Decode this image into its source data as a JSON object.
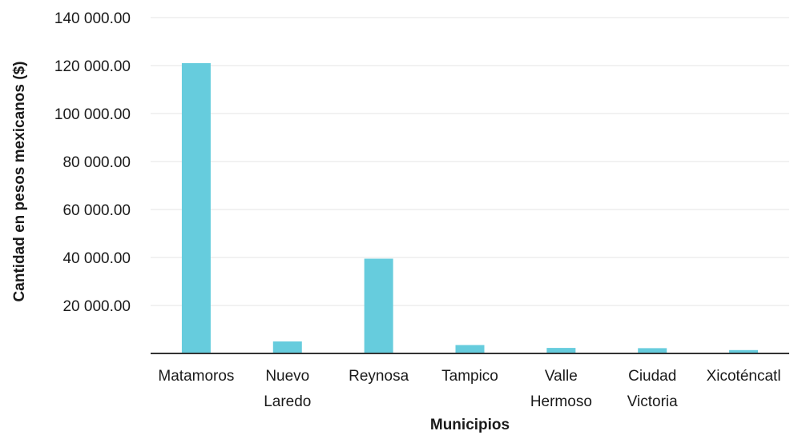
{
  "chart_data": {
    "type": "bar",
    "categories": [
      "Matamoros",
      "Nuevo Laredo",
      "Reynosa",
      "Tampico",
      "Valle Hermoso",
      "Ciudad Victoria",
      "Xicoténcatl"
    ],
    "category_lines": [
      [
        "Matamoros"
      ],
      [
        "Nuevo",
        "Laredo"
      ],
      [
        "Reynosa"
      ],
      [
        "Tampico"
      ],
      [
        "Valle",
        "Hermoso"
      ],
      [
        "Ciudad",
        "Victoria"
      ],
      [
        "Xicoténcatl"
      ]
    ],
    "values": [
      121000,
      5000,
      39500,
      3500,
      2300,
      2200,
      1400
    ],
    "xlabel": "Municipios",
    "ylabel": "Cantidad en pesos mexicanos ($)",
    "ylim": [
      0,
      140000
    ],
    "yticks": [
      20000,
      40000,
      60000,
      80000,
      100000,
      120000,
      140000
    ],
    "ytick_labels": [
      "20 000.00",
      "40 000.00",
      "60 000.00",
      "80 000.00",
      "100 000.00",
      "120 000.00",
      "140 000.00"
    ],
    "grid": true,
    "legend": "none",
    "bar_color": "#66ccdd"
  }
}
